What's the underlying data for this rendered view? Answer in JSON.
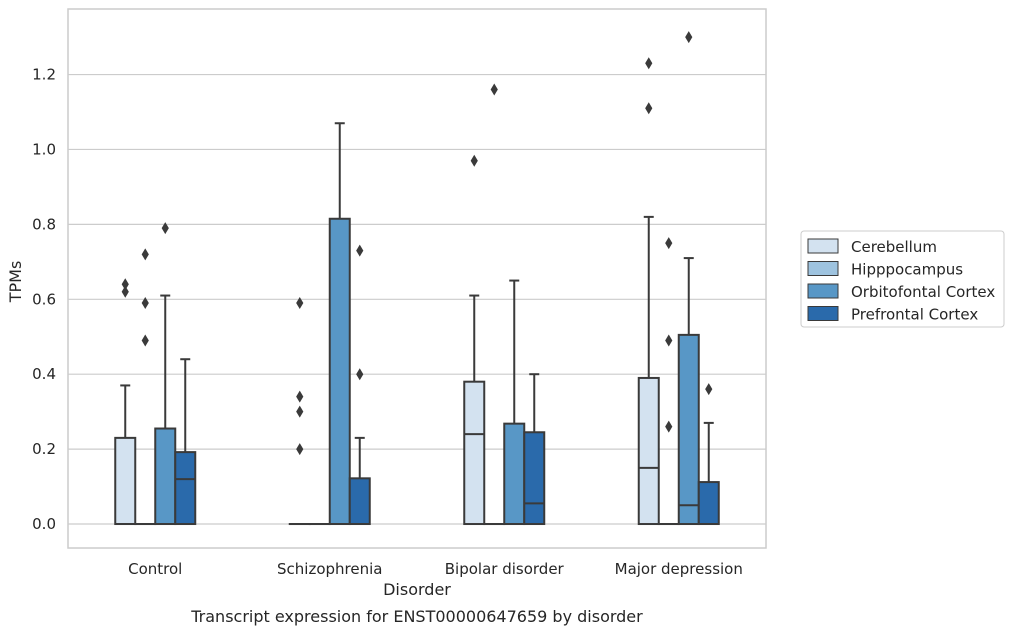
{
  "chart_data": {
    "type": "box",
    "xlabel": "Disorder",
    "ylabel": "TPMs",
    "caption": "Transcript expression for ENST00000647659 by disorder",
    "ylim": [
      -0.064,
      1.375
    ],
    "yticks": [
      0.0,
      0.2,
      0.4,
      0.6,
      0.8,
      1.0,
      1.2
    ],
    "ytick_labels": [
      "0.0",
      "0.2",
      "0.4",
      "0.6",
      "0.8",
      "1.0",
      "1.2"
    ],
    "grid": true,
    "legend_position": "right",
    "categories": [
      "Control",
      "Schizophrenia",
      "Bipolar disorder",
      "Major depression"
    ],
    "series": [
      {
        "name": "Cerebellum",
        "color": "#d3e2f0",
        "boxes": [
          {
            "q1": 0.0,
            "median": 0.0,
            "q3": 0.23,
            "whislo": 0.0,
            "whishi": 0.37,
            "fliers": [
              0.62,
              0.64
            ]
          },
          {
            "q1": 0.0,
            "median": 0.0,
            "q3": 0.0,
            "whislo": 0.0,
            "whishi": 0.0,
            "fliers": [
              0.2,
              0.3,
              0.34,
              0.59
            ]
          },
          {
            "q1": 0.0,
            "median": 0.24,
            "q3": 0.38,
            "whislo": 0.0,
            "whishi": 0.61,
            "fliers": [
              0.97
            ]
          },
          {
            "q1": 0.0,
            "median": 0.15,
            "q3": 0.39,
            "whislo": 0.0,
            "whishi": 0.82,
            "fliers": [
              1.11,
              1.23
            ]
          }
        ]
      },
      {
        "name": "Hipppocampus",
        "color": "#9ec3df",
        "boxes": [
          {
            "q1": 0.0,
            "median": 0.0,
            "q3": 0.0,
            "whislo": 0.0,
            "whishi": 0.0,
            "fliers": [
              0.49,
              0.59,
              0.72
            ]
          },
          {
            "q1": 0.0,
            "median": 0.0,
            "q3": 0.0,
            "whislo": 0.0,
            "whishi": 0.0,
            "fliers": []
          },
          {
            "q1": 0.0,
            "median": 0.0,
            "q3": 0.0,
            "whislo": 0.0,
            "whishi": 0.0,
            "fliers": [
              1.16
            ]
          },
          {
            "q1": 0.0,
            "median": 0.0,
            "q3": 0.0,
            "whislo": 0.0,
            "whishi": 0.0,
            "fliers": [
              0.26,
              0.49,
              0.75
            ]
          }
        ]
      },
      {
        "name": "Orbitofontal Cortex",
        "color": "#5897c6",
        "boxes": [
          {
            "q1": 0.0,
            "median": 0.0,
            "q3": 0.255,
            "whislo": 0.0,
            "whishi": 0.61,
            "fliers": [
              0.79
            ]
          },
          {
            "q1": 0.0,
            "median": 0.0,
            "q3": 0.815,
            "whislo": 0.0,
            "whishi": 1.07,
            "fliers": []
          },
          {
            "q1": 0.0,
            "median": 0.0,
            "q3": 0.268,
            "whislo": 0.0,
            "whishi": 0.65,
            "fliers": []
          },
          {
            "q1": 0.0,
            "median": 0.05,
            "q3": 0.505,
            "whislo": 0.0,
            "whishi": 0.71,
            "fliers": [
              1.3
            ]
          }
        ]
      },
      {
        "name": "Prefrontal Cortex",
        "color": "#2a6aab",
        "boxes": [
          {
            "q1": 0.0,
            "median": 0.12,
            "q3": 0.192,
            "whislo": 0.0,
            "whishi": 0.44,
            "fliers": []
          },
          {
            "q1": 0.0,
            "median": 0.0,
            "q3": 0.122,
            "whislo": 0.0,
            "whishi": 0.23,
            "fliers": [
              0.4,
              0.73
            ]
          },
          {
            "q1": 0.0,
            "median": 0.055,
            "q3": 0.245,
            "whislo": 0.0,
            "whishi": 0.4,
            "fliers": []
          },
          {
            "q1": 0.0,
            "median": 0.0,
            "q3": 0.112,
            "whislo": 0.0,
            "whishi": 0.27,
            "fliers": [
              0.36
            ]
          }
        ]
      }
    ]
  }
}
